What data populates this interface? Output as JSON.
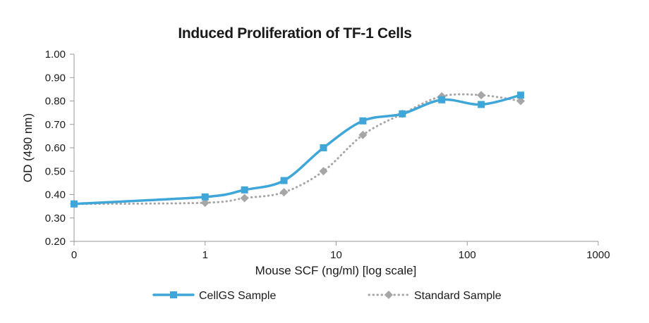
{
  "chart_data": {
    "type": "line",
    "title": "Induced Proliferation of TF-1 Cells",
    "xlabel": "Mouse SCF (ng/ml) [log scale]",
    "ylabel": "OD (490 nm)",
    "x_scale": "log",
    "x_ticks": [
      "0",
      "1",
      "10",
      "100",
      "1000"
    ],
    "y_ticks": [
      "0.20",
      "0.30",
      "0.40",
      "0.50",
      "0.60",
      "0.70",
      "0.80",
      "0.90",
      "1.00"
    ],
    "ylim": [
      0.2,
      1.0
    ],
    "grid": false,
    "legend_position": "bottom",
    "series": [
      {
        "name": "CellGS Sample",
        "color": "#3ea6d8",
        "line_style": "solid",
        "marker": "square",
        "x": [
          0.1,
          1,
          2,
          4,
          8,
          16,
          32,
          64,
          128,
          256
        ],
        "y": [
          0.36,
          0.39,
          0.42,
          0.46,
          0.6,
          0.715,
          0.745,
          0.805,
          0.785,
          0.825
        ]
      },
      {
        "name": "Standard Sample",
        "color": "#a6a6a6",
        "line_style": "dotted",
        "marker": "diamond",
        "x": [
          0.1,
          1,
          2,
          4,
          8,
          16,
          32,
          64,
          128,
          256
        ],
        "y": [
          0.36,
          0.365,
          0.385,
          0.41,
          0.5,
          0.655,
          0.745,
          0.82,
          0.825,
          0.8
        ]
      }
    ]
  }
}
